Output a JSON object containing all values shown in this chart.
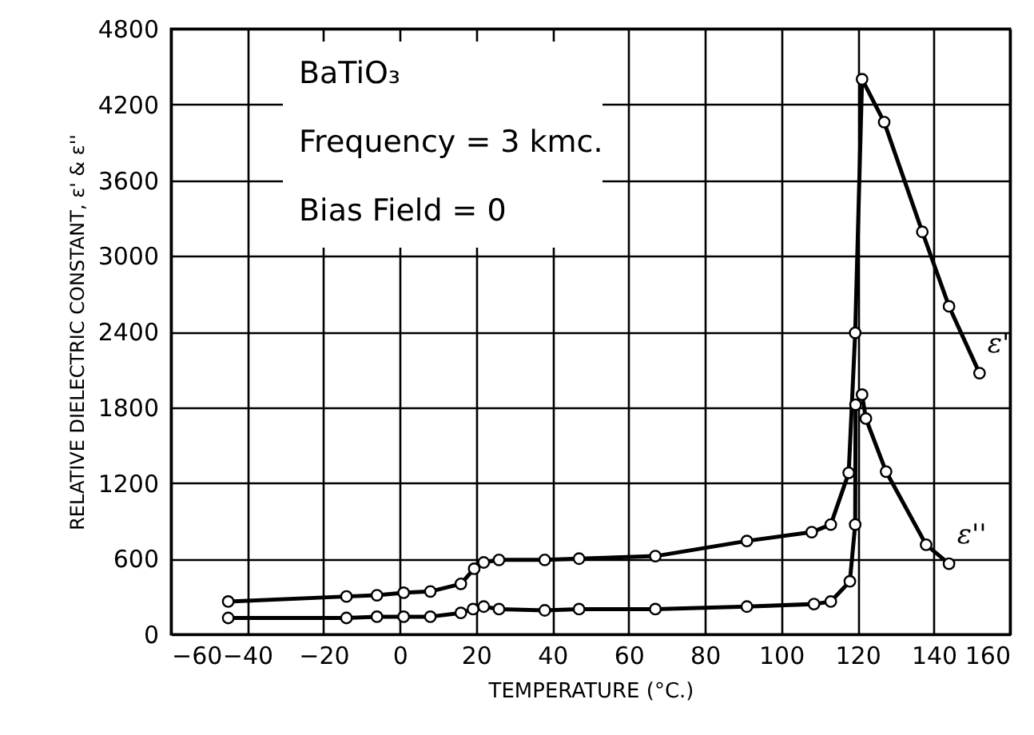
{
  "chart_data": {
    "type": "line",
    "xlabel": "TEMPERATURE (°C.)",
    "ylabel": "RELATIVE DIELECTRIC CONSTANT, ε' & ε''",
    "annotations": [
      "BaTiO₃",
      "Frequency = 3 kmc.",
      "Bias Field = 0"
    ],
    "series": [
      {
        "name": "ε'",
        "color": "#000000",
        "x": [
          -45,
          -14,
          -6,
          1,
          8,
          16,
          19.5,
          22,
          26,
          38,
          47,
          67,
          91,
          108,
          113,
          117.7,
          119.4,
          121.2,
          127,
          137,
          144,
          152
        ],
        "values": [
          260,
          300,
          310,
          330,
          340,
          400,
          520,
          570,
          590,
          590,
          600,
          620,
          740,
          810,
          870,
          1280,
          2390,
          4400,
          4060,
          3190,
          2600,
          2070
        ]
      },
      {
        "name": "ε''",
        "color": "#000000",
        "x": [
          -45,
          -14,
          -6,
          1,
          8,
          16,
          19.2,
          22,
          26,
          38,
          47,
          67,
          91,
          108.6,
          113,
          118,
          119.4,
          119.5,
          121.2,
          122.2,
          127.5,
          138,
          144
        ],
        "values": [
          130,
          130,
          140,
          140,
          140,
          170,
          200,
          220,
          200,
          190,
          200,
          200,
          220,
          240,
          260,
          420,
          870,
          1820,
          1900,
          1710,
          1290,
          710,
          560
        ]
      }
    ],
    "xlim": [
      -60,
      160
    ],
    "xticks": [
      -60,
      -40,
      -20,
      0,
      20,
      40,
      60,
      80,
      100,
      120,
      140,
      160
    ],
    "ylim": [
      0,
      4800
    ],
    "yticks": [
      0,
      600,
      1200,
      1800,
      2400,
      3000,
      3600,
      4200,
      4800
    ],
    "grid": true,
    "marker": "circle",
    "line_style": "solid"
  }
}
